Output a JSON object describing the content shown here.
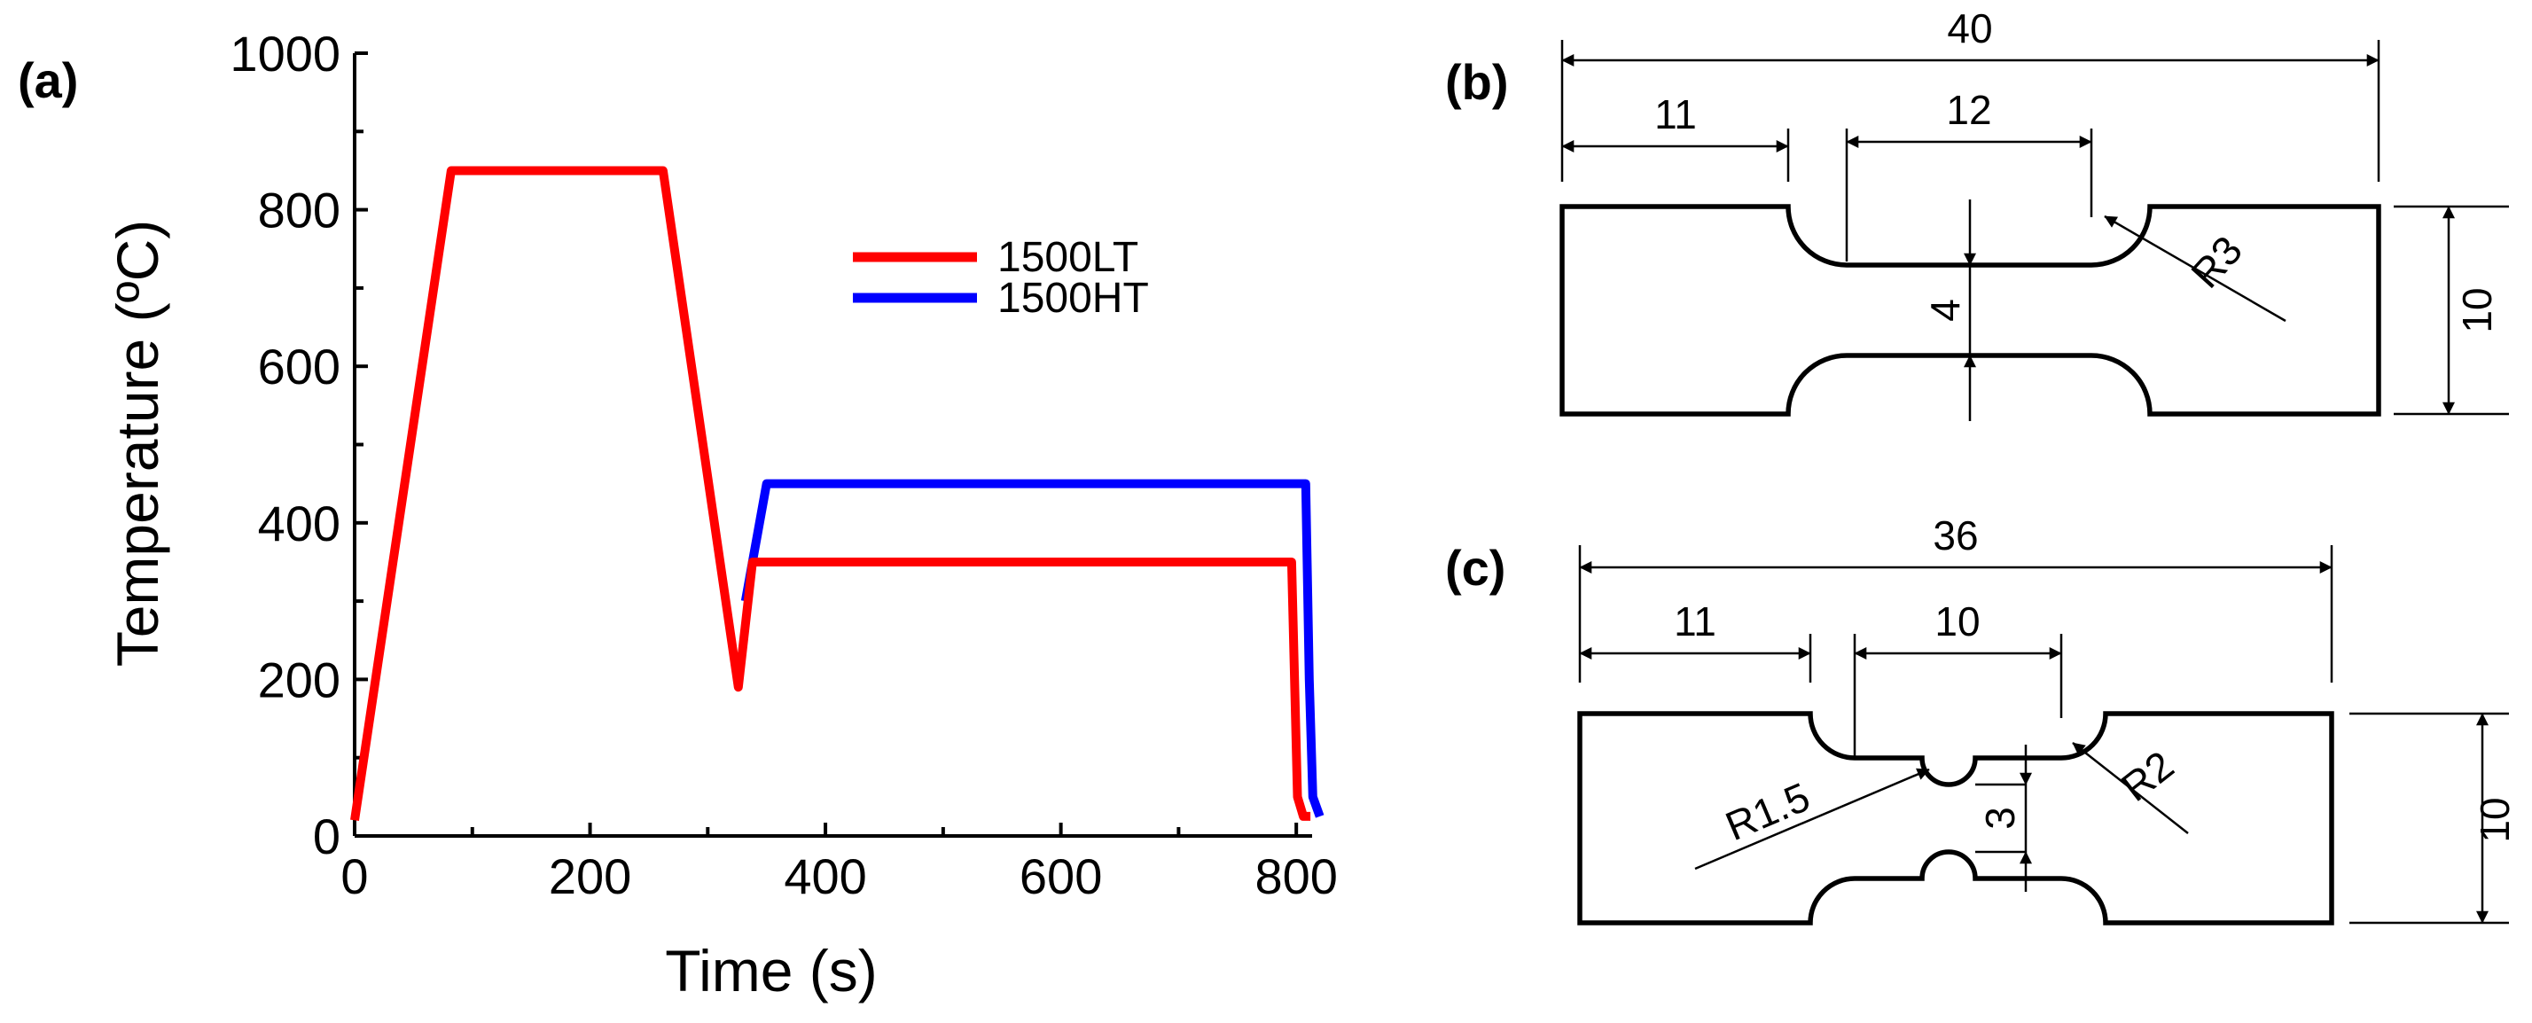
{
  "chart_data": {
    "type": "line",
    "panel_label": "(a)",
    "xlabel": "Time (s)",
    "ylabel": "Temperature (ºC)",
    "xlim": [
      0,
      830
    ],
    "ylim": [
      0,
      1000
    ],
    "x_ticks": [
      0,
      200,
      400,
      600,
      800
    ],
    "y_ticks": [
      0,
      200,
      400,
      600,
      800,
      1000
    ],
    "grid": false,
    "legend_position": "top-right",
    "series": [
      {
        "name": "1500LT",
        "color": "#ff0000",
        "points": [
          [
            0,
            20
          ],
          [
            82,
            850
          ],
          [
            262,
            850
          ],
          [
            326,
            190
          ],
          [
            338,
            350
          ],
          [
            796,
            350
          ],
          [
            801,
            50
          ],
          [
            806,
            25
          ],
          [
            812,
            25
          ]
        ]
      },
      {
        "name": "1500HT",
        "color": "#0000ff",
        "points": [
          [
            332,
            300
          ],
          [
            350,
            450
          ],
          [
            808,
            450
          ],
          [
            811,
            200
          ],
          [
            814,
            50
          ],
          [
            820,
            25
          ]
        ]
      }
    ]
  },
  "specimens": [
    {
      "panel_label": "(b)",
      "dimensions": {
        "total_length": "40",
        "grip_length": "11",
        "gauge_length": "12",
        "gauge_width": "4",
        "total_width": "10",
        "radius": "R3"
      }
    },
    {
      "panel_label": "(c)",
      "dimensions": {
        "total_length": "36",
        "grip_length": "11",
        "gauge_length": "10",
        "notch_width": "3",
        "total_width": "10",
        "notch_radius": "R1.5",
        "fillet_radius": "R2"
      }
    }
  ]
}
